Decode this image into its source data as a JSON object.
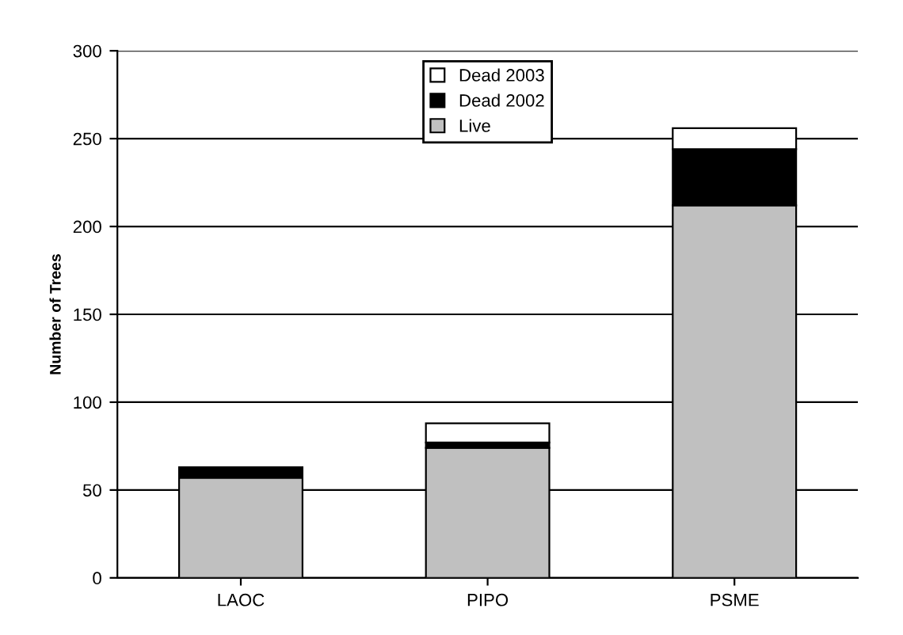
{
  "chart_data": {
    "type": "bar",
    "stacked": true,
    "ylabel": "Number of Trees",
    "categories": [
      "LAOC",
      "PIPO",
      "PSME"
    ],
    "series": [
      {
        "name": "Live",
        "color": "#c0c0c0",
        "values": [
          57,
          74,
          212
        ]
      },
      {
        "name": "Dead 2002",
        "color": "#000000",
        "values": [
          5,
          3,
          32
        ]
      },
      {
        "name": "Dead 2003",
        "color": "#ffffff",
        "values": [
          1,
          11,
          12
        ]
      }
    ],
    "ylim": [
      0,
      300
    ],
    "yticks": [
      0,
      50,
      100,
      150,
      200,
      250,
      300
    ],
    "grid": "y",
    "legend": "top"
  }
}
